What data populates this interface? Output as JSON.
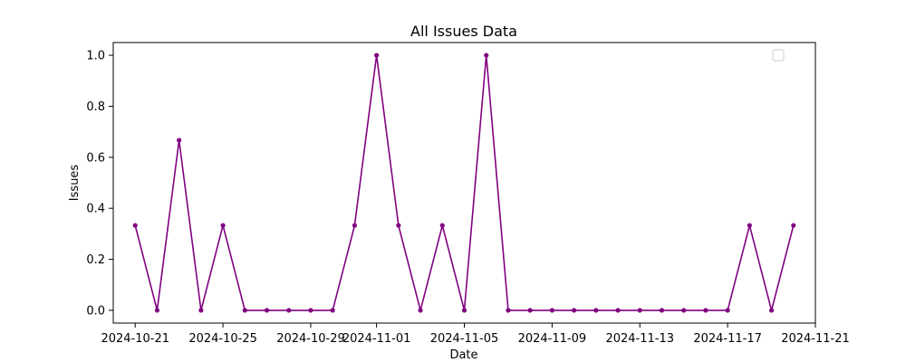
{
  "chart_data": {
    "type": "line",
    "title": "All Issues Data",
    "xlabel": "Date",
    "ylabel": "Issues",
    "grid": false,
    "legend": "upper right (empty)",
    "x_ticks": [
      "2024-10-21",
      "2024-10-25",
      "2024-10-29",
      "2024-11-01",
      "2024-11-05",
      "2024-11-09",
      "2024-11-13",
      "2024-11-17",
      "2024-11-21"
    ],
    "y_ticks": [
      "0.0",
      "0.2",
      "0.4",
      "0.6",
      "0.8",
      "1.0"
    ],
    "xlim": [
      "2024-10-20",
      "2024-11-21"
    ],
    "ylim": [
      -0.05,
      1.05
    ],
    "series": [
      {
        "color": "#800080",
        "marker": "circle",
        "x": [
          "2024-10-21",
          "2024-10-22",
          "2024-10-23",
          "2024-10-24",
          "2024-10-25",
          "2024-10-26",
          "2024-10-27",
          "2024-10-28",
          "2024-10-29",
          "2024-10-30",
          "2024-10-31",
          "2024-11-01",
          "2024-11-02",
          "2024-11-03",
          "2024-11-04",
          "2024-11-05",
          "2024-11-06",
          "2024-11-07",
          "2024-11-08",
          "2024-11-09",
          "2024-11-10",
          "2024-11-11",
          "2024-11-12",
          "2024-11-13",
          "2024-11-14",
          "2024-11-15",
          "2024-11-16",
          "2024-11-17",
          "2024-11-18",
          "2024-11-19",
          "2024-11-20"
        ],
        "y": [
          0.333,
          0,
          0.667,
          0,
          0.333,
          0,
          0,
          0,
          0,
          0,
          0.333,
          1,
          0.333,
          0,
          0.333,
          0,
          1,
          0,
          0,
          0,
          0,
          0,
          0,
          0,
          0,
          0,
          0,
          0,
          0.333,
          0,
          0.333
        ]
      }
    ]
  }
}
